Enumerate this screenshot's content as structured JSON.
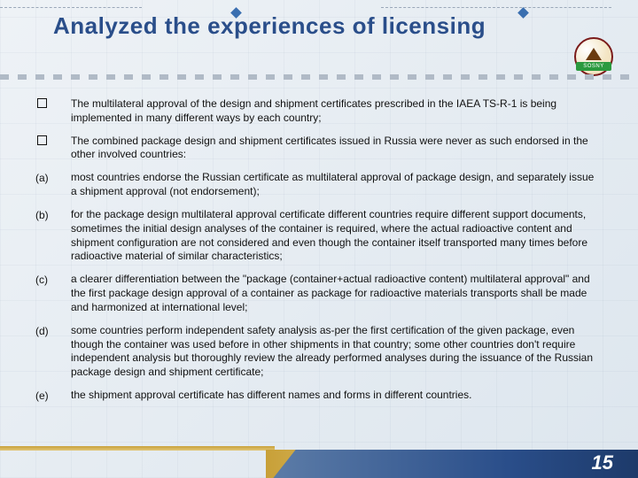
{
  "title": "Analyzed the experiences of licensing",
  "logo": {
    "label": "SOSNY"
  },
  "accent_color": "#2a4e8a",
  "background_color": "#e8edf2",
  "items": [
    {
      "marker": "sq",
      "label": "",
      "text": "The multilateral approval of the design and shipment certificates prescribed in the IAEA TS-R-1 is being implemented in many different ways by each country;"
    },
    {
      "marker": "sq",
      "label": "",
      "text": "The combined package design and shipment certificates issued in Russia were never as such endorsed in the other involved countries:"
    },
    {
      "marker": "txt",
      "label": "(a)",
      "text": "most countries endorse the Russian certificate as multilateral approval of package design, and separately issue a shipment approval (not endorsement);"
    },
    {
      "marker": "txt",
      "label": "(b)",
      "text": "for the package design multilateral approval certificate different countries require different support documents, sometimes the initial design analyses of the container is required, where the actual radioactive content and shipment configuration are not considered and even though the container itself transported many times before radioactive material of similar characteristics;"
    },
    {
      "marker": "txt",
      "label": "(c)",
      "text": "a clearer differentiation between the \"package (container+actual radioactive content) multilateral approval\" and the first package design approval of a container as package for radioactive materials transports shall be made and harmonized at international level;"
    },
    {
      "marker": "txt",
      "label": "(d)",
      "text": "some countries perform independent safety analysis as-per the first certification of the given package, even though the container was used before in other shipments in that country; some other countries don't require independent analysis but thoroughly review the already performed analyses during the issuance of the Russian package design and shipment certificate;"
    },
    {
      "marker": "txt",
      "label": "(e)",
      "text": "the shipment approval certificate has different names and forms in different countries."
    }
  ],
  "page_number": "15"
}
